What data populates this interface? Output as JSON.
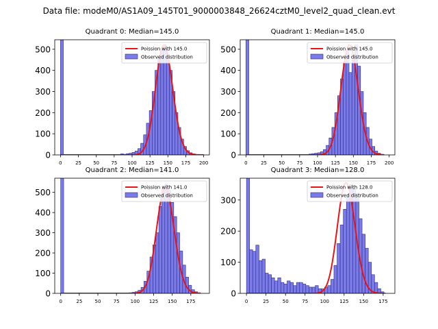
{
  "figure_title": "Data file: modeM0/AS1A09_145T01_9000003848_26624cztM0_level2_quad_clean.evt",
  "colors": {
    "bar_fill": "#7b7be8",
    "bar_edge": "#2a2a8a",
    "line": "#ee1111"
  },
  "chart_data": [
    {
      "type": "bar",
      "title": "Quadrant 0: Median=145.0",
      "legend": {
        "line": "Poission with 145.0",
        "bars": "Observed distribution",
        "placement": "top-right"
      },
      "xlim": [
        -8,
        208
      ],
      "ylim": [
        0,
        545
      ],
      "xticks": [
        0,
        25,
        50,
        75,
        100,
        125,
        150,
        175,
        200
      ],
      "yticks": [
        0,
        100,
        200,
        300,
        400,
        500
      ],
      "bin_width": 4,
      "bins": [
        [
          0,
          545
        ],
        [
          84,
          5
        ],
        [
          88,
          3
        ],
        [
          92,
          6
        ],
        [
          96,
          8
        ],
        [
          100,
          12
        ],
        [
          104,
          18
        ],
        [
          108,
          30
        ],
        [
          112,
          55
        ],
        [
          116,
          95
        ],
        [
          120,
          150
        ],
        [
          124,
          210
        ],
        [
          128,
          300
        ],
        [
          132,
          400
        ],
        [
          136,
          460
        ],
        [
          140,
          500
        ],
        [
          144,
          520
        ],
        [
          148,
          460
        ],
        [
          152,
          400
        ],
        [
          156,
          300
        ],
        [
          160,
          200
        ],
        [
          164,
          130
        ],
        [
          168,
          75
        ],
        [
          172,
          40
        ],
        [
          176,
          20
        ],
        [
          180,
          10
        ],
        [
          184,
          5
        ],
        [
          188,
          2
        ]
      ],
      "poisson_mean": 145.0,
      "poisson_peak": 520,
      "poisson_range": [
        0,
        200
      ]
    },
    {
      "type": "bar",
      "title": "Quadrant 1: Median=145.0",
      "legend": {
        "line": "Poission with 145.0",
        "bars": "Observed distribution",
        "placement": "top-right"
      },
      "xlim": [
        -8,
        208
      ],
      "ylim": [
        0,
        545
      ],
      "xticks": [
        0,
        25,
        50,
        75,
        100,
        125,
        150,
        175,
        200
      ],
      "yticks": [
        0,
        100,
        200,
        300,
        400,
        500
      ],
      "bin_width": 4,
      "bins": [
        [
          0,
          545
        ],
        [
          88,
          4
        ],
        [
          92,
          6
        ],
        [
          96,
          8
        ],
        [
          100,
          10
        ],
        [
          104,
          15
        ],
        [
          108,
          25
        ],
        [
          112,
          45
        ],
        [
          116,
          80
        ],
        [
          120,
          130
        ],
        [
          124,
          200
        ],
        [
          128,
          280
        ],
        [
          132,
          360
        ],
        [
          136,
          440
        ],
        [
          140,
          490
        ],
        [
          144,
          390
        ],
        [
          148,
          450
        ],
        [
          152,
          520
        ],
        [
          156,
          420
        ],
        [
          160,
          300
        ],
        [
          164,
          200
        ],
        [
          168,
          130
        ],
        [
          172,
          75
        ],
        [
          176,
          40
        ],
        [
          180,
          18
        ],
        [
          184,
          8
        ],
        [
          188,
          3
        ]
      ],
      "poisson_mean": 145.0,
      "poisson_peak": 520,
      "poisson_range": [
        0,
        193
      ]
    },
    {
      "type": "bar",
      "title": "Quadrant 2: Median=141.0",
      "legend": {
        "line": "Poission with 141.0",
        "bars": "Observed distribution",
        "placement": "top-right"
      },
      "xlim": [
        -8,
        200
      ],
      "ylim": [
        0,
        570
      ],
      "xticks": [
        0,
        25,
        50,
        75,
        100,
        125,
        150,
        175
      ],
      "yticks": [
        0,
        100,
        200,
        300,
        400,
        500
      ],
      "bin_width": 4,
      "bins": [
        [
          0,
          570
        ],
        [
          92,
          3
        ],
        [
          96,
          5
        ],
        [
          100,
          8
        ],
        [
          104,
          15
        ],
        [
          108,
          30
        ],
        [
          112,
          60
        ],
        [
          116,
          110
        ],
        [
          120,
          180
        ],
        [
          124,
          240
        ],
        [
          128,
          300
        ],
        [
          132,
          430
        ],
        [
          136,
          520
        ],
        [
          140,
          540
        ],
        [
          144,
          510
        ],
        [
          148,
          450
        ],
        [
          152,
          380
        ],
        [
          156,
          300
        ],
        [
          160,
          210
        ],
        [
          164,
          140
        ],
        [
          168,
          80
        ],
        [
          172,
          40
        ],
        [
          176,
          18
        ],
        [
          180,
          8
        ],
        [
          184,
          3
        ]
      ],
      "poisson_mean": 141.0,
      "poisson_peak": 520,
      "poisson_range": [
        0,
        188
      ]
    },
    {
      "type": "bar",
      "title": "Quadrant 3: Median=128.0",
      "legend": {
        "line": "Poission with 128.0",
        "bars": "Observed distribution",
        "placement": "top-right"
      },
      "xlim": [
        -8,
        190
      ],
      "ylim": [
        0,
        370
      ],
      "xticks": [
        0,
        25,
        50,
        75,
        100,
        125,
        150,
        175
      ],
      "yticks": [
        0,
        100,
        200,
        300
      ],
      "bin_width": 4,
      "bins": [
        [
          0,
          370
        ],
        [
          4,
          140
        ],
        [
          8,
          135
        ],
        [
          12,
          155
        ],
        [
          16,
          105
        ],
        [
          20,
          110
        ],
        [
          24,
          65
        ],
        [
          28,
          60
        ],
        [
          32,
          50
        ],
        [
          36,
          40
        ],
        [
          40,
          50
        ],
        [
          44,
          35
        ],
        [
          48,
          30
        ],
        [
          52,
          40
        ],
        [
          56,
          35
        ],
        [
          60,
          25
        ],
        [
          64,
          35
        ],
        [
          68,
          35
        ],
        [
          72,
          30
        ],
        [
          76,
          25
        ],
        [
          80,
          20
        ],
        [
          84,
          20
        ],
        [
          88,
          25
        ],
        [
          92,
          15
        ],
        [
          96,
          15
        ],
        [
          100,
          20
        ],
        [
          104,
          25
        ],
        [
          108,
          45
        ],
        [
          112,
          90
        ],
        [
          116,
          160
        ],
        [
          120,
          220
        ],
        [
          124,
          270
        ],
        [
          128,
          310
        ],
        [
          132,
          350
        ],
        [
          136,
          335
        ],
        [
          140,
          320
        ],
        [
          144,
          240
        ],
        [
          148,
          190
        ],
        [
          152,
          145
        ],
        [
          156,
          100
        ],
        [
          160,
          60
        ],
        [
          164,
          35
        ],
        [
          168,
          15
        ],
        [
          172,
          5
        ]
      ],
      "poisson_mean": 128.0,
      "poisson_peak": 355,
      "poisson_range": [
        0,
        178
      ]
    }
  ]
}
